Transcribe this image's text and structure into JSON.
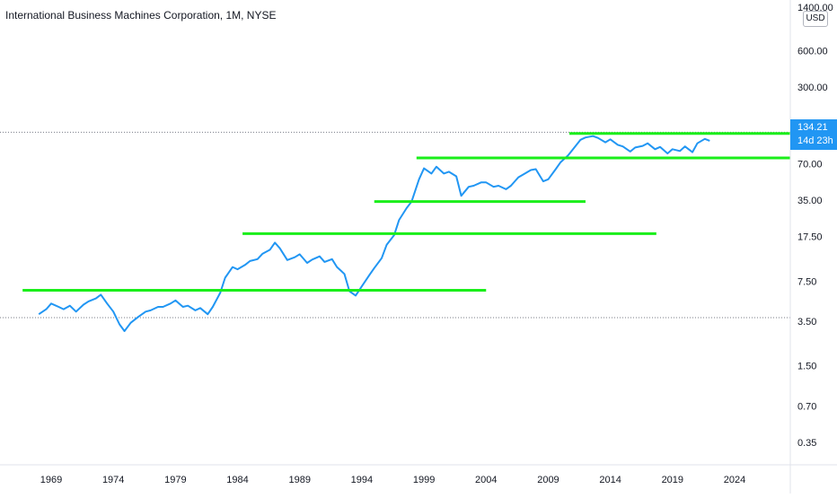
{
  "chart_data": {
    "type": "line",
    "title": "International Business Machines Corporation, 1M, NYSE",
    "currency": "USD",
    "y_scale": "log",
    "ylim": [
      0.3,
      1400
    ],
    "xlim": [
      1965.2,
      2030.0
    ],
    "y_ticks": [
      "1400.00",
      "600.00",
      "300.00",
      "70.00",
      "35.00",
      "17.50",
      "7.50",
      "3.50",
      "1.50",
      "0.70",
      "0.35"
    ],
    "y_tick_values": [
      1400,
      600,
      300,
      70,
      35,
      17.5,
      7.5,
      3.5,
      1.5,
      0.7,
      0.35
    ],
    "x_ticks": [
      "1969",
      "1974",
      "1979",
      "1984",
      "1989",
      "1994",
      "1999",
      "2004",
      "2009",
      "2014",
      "2019",
      "2024"
    ],
    "x_tick_values": [
      1969,
      1974,
      1979,
      1984,
      1989,
      1994,
      1999,
      2004,
      2009,
      2014,
      2019,
      2024
    ],
    "last_price": {
      "value": "134.21",
      "countdown": "14d 23h"
    },
    "series": [
      {
        "color": "#2196f3",
        "x": [
          1968.0,
          1968.6,
          1969.0,
          1969.6,
          1970.0,
          1970.5,
          1971.0,
          1971.6,
          1972.0,
          1972.6,
          1973.0,
          1973.5,
          1974.0,
          1974.5,
          1974.9,
          1975.4,
          1976.0,
          1976.6,
          1977.0,
          1977.6,
          1978.0,
          1978.6,
          1979.0,
          1979.6,
          1980.0,
          1980.6,
          1981.0,
          1981.6,
          1982.0,
          1982.6,
          1983.0,
          1983.6,
          1984.0,
          1984.6,
          1985.0,
          1985.6,
          1986.0,
          1986.6,
          1987.0,
          1987.4,
          1988.0,
          1988.6,
          1989.0,
          1989.6,
          1990.0,
          1990.6,
          1991.0,
          1991.6,
          1992.0,
          1992.6,
          1993.0,
          1993.5,
          1994.0,
          1994.6,
          1995.0,
          1995.6,
          1996.0,
          1996.6,
          1997.0,
          1997.6,
          1998.0,
          1998.6,
          1999.0,
          1999.6,
          2000.0,
          2000.6,
          2001.0,
          2001.6,
          2002.0,
          2002.6,
          2003.0,
          2003.6,
          2004.0,
          2004.6,
          2005.0,
          2005.6,
          2006.0,
          2006.6,
          2007.0,
          2007.6,
          2008.0,
          2008.6,
          2009.0,
          2009.6,
          2010.0,
          2010.6,
          2011.0,
          2011.6,
          2012.0,
          2012.6,
          2013.0,
          2013.6,
          2014.0,
          2014.6,
          2015.0,
          2015.6,
          2016.0,
          2016.6,
          2017.0,
          2017.6,
          2018.0,
          2018.6,
          2019.0,
          2019.6,
          2020.0,
          2020.6,
          2021.0,
          2021.6,
          2022.0
        ],
        "y": [
          4.0,
          4.4,
          4.9,
          4.6,
          4.4,
          4.7,
          4.2,
          4.8,
          5.1,
          5.4,
          5.8,
          4.9,
          4.2,
          3.3,
          2.9,
          3.4,
          3.8,
          4.2,
          4.3,
          4.6,
          4.6,
          4.9,
          5.2,
          4.6,
          4.7,
          4.3,
          4.5,
          4.0,
          4.6,
          6.0,
          8.0,
          9.8,
          9.4,
          10.2,
          11.0,
          11.4,
          12.6,
          13.6,
          15.6,
          14.0,
          11.2,
          11.8,
          12.5,
          10.6,
          11.3,
          12.0,
          10.8,
          11.4,
          9.8,
          8.6,
          6.2,
          5.7,
          6.8,
          8.4,
          9.6,
          11.6,
          15.0,
          18.0,
          24.0,
          30.0,
          34.0,
          52.0,
          64.0,
          58.0,
          66.0,
          58.0,
          60.0,
          55.0,
          38.0,
          45.0,
          46.0,
          49.0,
          49.0,
          45.0,
          46.0,
          43.0,
          46.0,
          54.0,
          57.0,
          62.0,
          63.0,
          50.0,
          52.0,
          63.0,
          72.0,
          82.0,
          92.0,
          110.0,
          115.0,
          118.0,
          114.0,
          105.0,
          111.0,
          100.0,
          97.0,
          88.0,
          95.0,
          98.0,
          103.0,
          92.0,
          96.0,
          85.0,
          92.0,
          89.0,
          97.0,
          87.0,
          103.0,
          112.0,
          108.0
        ]
      }
    ],
    "levels": [
      {
        "y": 6.3,
        "x_start": 1966.7,
        "x_end": 2004.0
      },
      {
        "y": 18.5,
        "x_start": 1984.4,
        "x_end": 2017.7
      },
      {
        "y": 34.0,
        "x_start": 1995.0,
        "x_end": 2012.0
      },
      {
        "y": 78.0,
        "x_start": 1998.4,
        "x_end": 2030.0
      },
      {
        "y": 124.0,
        "x_start": 2010.7,
        "x_end": 2030.0
      }
    ],
    "reference_lines": [
      {
        "y": 127.0,
        "style": "dotted"
      },
      {
        "y": 3.75,
        "style": "dotted"
      }
    ]
  }
}
